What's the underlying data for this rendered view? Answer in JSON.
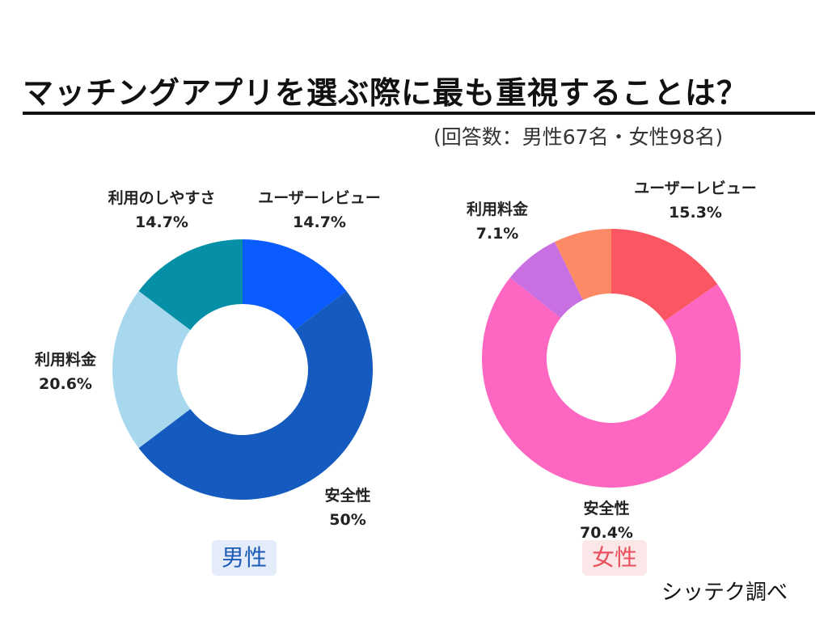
{
  "title": "マッチングアプリを選ぶ際に最も重視することは？",
  "subtitle": "(回答数：男性67名・女性98名)",
  "source": "シッテク調べ",
  "chart_data": [
    {
      "type": "pie",
      "variant": "donut",
      "group": "男性",
      "badge_color": "#1e5bb8",
      "slices": [
        {
          "label": "ユーザーレビュー",
          "value": 14.7,
          "display": "14.7%",
          "color": "#0a5cff"
        },
        {
          "label": "安全性",
          "value": 50,
          "display": "50%",
          "color": "#155bbf"
        },
        {
          "label": "利用料金",
          "value": 20.6,
          "display": "20.6%",
          "color": "#a8d8ee"
        },
        {
          "label": "利用のしやすさ",
          "value": 14.7,
          "display": "14.7%",
          "color": "#0590a8"
        }
      ]
    },
    {
      "type": "pie",
      "variant": "donut",
      "group": "女性",
      "badge_color": "#e8505b",
      "slices": [
        {
          "label": "ユーザーレビュー",
          "value": 15.3,
          "display": "15.3%",
          "color": "#fb5762"
        },
        {
          "label": "安全性",
          "value": 70.4,
          "display": "70.4%",
          "color": "#fd67c2"
        },
        {
          "label": "利用料金",
          "value": 7.1,
          "display": "7.1%",
          "color": "#c870e2"
        },
        {
          "label": "",
          "value": 7.2,
          "display": "",
          "color": "#fc8a66"
        }
      ]
    }
  ]
}
